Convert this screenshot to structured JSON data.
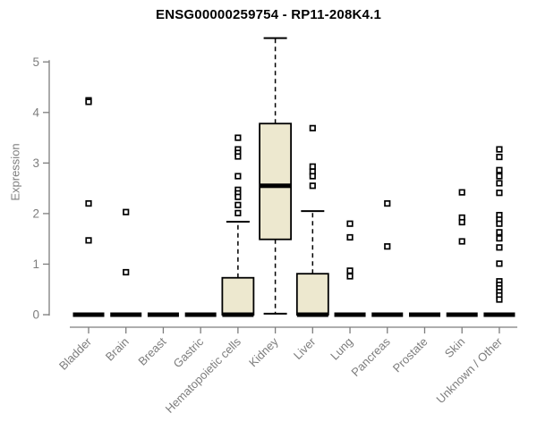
{
  "header": {
    "title": "ENSG00000259754 - RP11-208K4.1"
  },
  "chart_data": {
    "type": "boxplot",
    "title": "ENSG00000259754 - RP11-208K4.1",
    "xlabel": "",
    "ylabel": "Expression",
    "ylim": [
      0,
      5.5
    ],
    "y_ticks": [
      0,
      1,
      2,
      3,
      4,
      5
    ],
    "grid": false,
    "legend": "none",
    "categories": [
      "Bladder",
      "Brain",
      "Breast",
      "Gastric",
      "Hematopoietic cells",
      "Kidney",
      "Liver",
      "Lung",
      "Pancreas",
      "Prostate",
      "Skin",
      "Unknown / Other"
    ],
    "series": [
      {
        "label": "Bladder",
        "q1": 0,
        "median": 0,
        "q3": 0,
        "whisker_low": 0,
        "whisker_high": 0,
        "outliers": [
          4.24,
          4.21,
          2.2,
          1.47
        ]
      },
      {
        "label": "Brain",
        "q1": 0,
        "median": 0,
        "q3": 0,
        "whisker_low": 0,
        "whisker_high": 0,
        "outliers": [
          2.03,
          0.84
        ]
      },
      {
        "label": "Breast",
        "q1": 0,
        "median": 0,
        "q3": 0,
        "whisker_low": 0,
        "whisker_high": 0,
        "outliers": []
      },
      {
        "label": "Gastric",
        "q1": 0,
        "median": 0,
        "q3": 0,
        "whisker_low": 0,
        "whisker_high": 0,
        "outliers": []
      },
      {
        "label": "Hematopoietic cells",
        "q1": 0,
        "median": 0,
        "q3": 0.73,
        "whisker_low": 0,
        "whisker_high": 1.84,
        "outliers": [
          3.5,
          3.27,
          3.2,
          3.13,
          2.74,
          2.47,
          2.4,
          2.33,
          2.17,
          2.01
        ]
      },
      {
        "label": "Kidney",
        "q1": 1.49,
        "median": 2.55,
        "q3": 3.78,
        "whisker_low": 0.02,
        "whisker_high": 5.47,
        "outliers": []
      },
      {
        "label": "Liver",
        "q1": 0,
        "median": 0,
        "q3": 0.81,
        "whisker_low": 0,
        "whisker_high": 2.05,
        "outliers": [
          3.69,
          2.93,
          2.83,
          2.74,
          2.55
        ]
      },
      {
        "label": "Lung",
        "q1": 0,
        "median": 0,
        "q3": 0,
        "whisker_low": 0,
        "whisker_high": 0,
        "outliers": [
          1.8,
          1.53,
          0.87,
          0.76
        ]
      },
      {
        "label": "Pancreas",
        "q1": 0,
        "median": 0,
        "q3": 0,
        "whisker_low": 0,
        "whisker_high": 0,
        "outliers": [
          2.2,
          1.35
        ]
      },
      {
        "label": "Prostate",
        "q1": 0,
        "median": 0,
        "q3": 0,
        "whisker_low": 0,
        "whisker_high": 0,
        "outliers": []
      },
      {
        "label": "Skin",
        "q1": 0,
        "median": 0,
        "q3": 0,
        "whisker_low": 0,
        "whisker_high": 0,
        "outliers": [
          2.42,
          1.92,
          1.83,
          1.45
        ]
      },
      {
        "label": "Unknown / Other",
        "q1": 0,
        "median": 0,
        "q3": 0,
        "whisker_low": 0,
        "whisker_high": 0,
        "outliers": [
          3.27,
          3.12,
          2.86,
          2.74,
          2.6,
          2.41,
          1.97,
          1.88,
          1.8,
          1.63,
          1.51,
          1.33,
          1.01,
          0.66,
          0.59,
          0.52,
          0.45,
          0.38,
          0.3
        ]
      }
    ],
    "colors": {
      "box_fill": "#EDE8CF",
      "box_stroke": "#000000",
      "median": "#000000",
      "whisker": "#000000",
      "outlier_stroke": "#000000",
      "outlier_fill": "#FFFFFF",
      "axis": "#7D7D7D",
      "tick_label": "#7D7D7D",
      "title": "#000000",
      "background": "#FFFFFF"
    }
  }
}
